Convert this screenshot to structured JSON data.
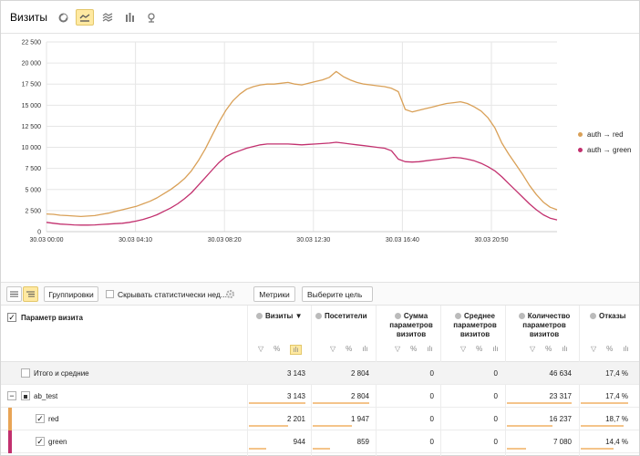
{
  "header": {
    "title": "Визиты",
    "view_types": [
      "pie-icon",
      "line-chart-icon",
      "area-chart-icon",
      "bar-chart-icon",
      "map-icon"
    ]
  },
  "chart_data": {
    "type": "line",
    "x_ticks": [
      "30.03 00:00",
      "30.03 04:10",
      "30.03 08:20",
      "30.03 12:30",
      "30.03 16:40",
      "30.03 20:50"
    ],
    "ylim": [
      0,
      22500
    ],
    "y_ticks": [
      "0",
      "2 500",
      "5 000",
      "7 500",
      "10 000",
      "12 500",
      "15 000",
      "17 500",
      "20 000",
      "22 500"
    ],
    "grid": true,
    "legend_placement": "right",
    "series": [
      {
        "name": "auth → red",
        "color": "#d9a057",
        "values": [
          2100,
          2050,
          1950,
          1900,
          1850,
          1800,
          1850,
          1900,
          2050,
          2200,
          2400,
          2600,
          2800,
          3000,
          3300,
          3600,
          4000,
          4500,
          5000,
          5600,
          6300,
          7200,
          8400,
          9800,
          11400,
          13000,
          14400,
          15500,
          16300,
          16900,
          17200,
          17400,
          17500,
          17500,
          17600,
          17700,
          17500,
          17400,
          17600,
          17800,
          18000,
          18300,
          19000,
          18400,
          18000,
          17700,
          17500,
          17400,
          17300,
          17200,
          17000,
          16600,
          14500,
          14200,
          14400,
          14600,
          14800,
          15000,
          15200,
          15300,
          15400,
          15200,
          14800,
          14300,
          13500,
          12300,
          10500,
          9200,
          8000,
          6800,
          5500,
          4400,
          3500,
          2900,
          2600
        ]
      },
      {
        "name": "auth → green",
        "color": "#c2306e",
        "values": [
          1100,
          1000,
          900,
          850,
          800,
          780,
          780,
          800,
          850,
          900,
          950,
          1000,
          1100,
          1250,
          1450,
          1700,
          2000,
          2400,
          2800,
          3300,
          3900,
          4600,
          5500,
          6400,
          7300,
          8200,
          8900,
          9300,
          9600,
          9900,
          10100,
          10300,
          10400,
          10400,
          10400,
          10400,
          10350,
          10300,
          10350,
          10400,
          10450,
          10500,
          10600,
          10500,
          10400,
          10300,
          10200,
          10100,
          10000,
          9900,
          9600,
          8600,
          8300,
          8250,
          8300,
          8400,
          8500,
          8600,
          8700,
          8800,
          8750,
          8600,
          8400,
          8100,
          7700,
          7200,
          6500,
          5700,
          4900,
          4100,
          3300,
          2600,
          2000,
          1600,
          1400
        ]
      }
    ]
  },
  "toolbar": {
    "group_label": "Группировки",
    "hide_label": "Скрывать статистически нед...",
    "metrics_label": "Метрики",
    "goal_label": "Выберите цель"
  },
  "table": {
    "param_header": "Параметр визита",
    "columns": [
      {
        "label": "Визиты",
        "sort": "▼"
      },
      {
        "label": "Посетители"
      },
      {
        "label": "Сумма\nпараметров\nвизитов"
      },
      {
        "label": "Среднее\nпараметров\nвизитов"
      },
      {
        "label": "Количество\nпараметров\nвизитов"
      },
      {
        "label": "Отказы"
      }
    ],
    "rows": [
      {
        "name": "Итого и средние",
        "values": [
          "3 143",
          "2 804",
          "0",
          "0",
          "46 634",
          "17,4 %"
        ],
        "bars": [
          0,
          0,
          0,
          0,
          0,
          0
        ]
      },
      {
        "name": "ab_test",
        "values": [
          "3 143",
          "2 804",
          "0",
          "0",
          "23 317",
          "17,4 %"
        ],
        "bars": [
          1,
          1,
          0,
          0,
          1,
          1
        ]
      },
      {
        "name": "red",
        "values": [
          "2 201",
          "1 947",
          "0",
          "0",
          "16 237",
          "18,7 %"
        ],
        "bars": [
          0.7,
          0.69,
          0,
          0,
          0.7,
          0.9
        ],
        "marker": "#e8a456"
      },
      {
        "name": "green",
        "values": [
          "944",
          "859",
          "0",
          "0",
          "7 080",
          "14,4 %"
        ],
        "bars": [
          0.3,
          0.31,
          0,
          0,
          0.3,
          0.7
        ],
        "marker": "#c2306e"
      }
    ]
  }
}
